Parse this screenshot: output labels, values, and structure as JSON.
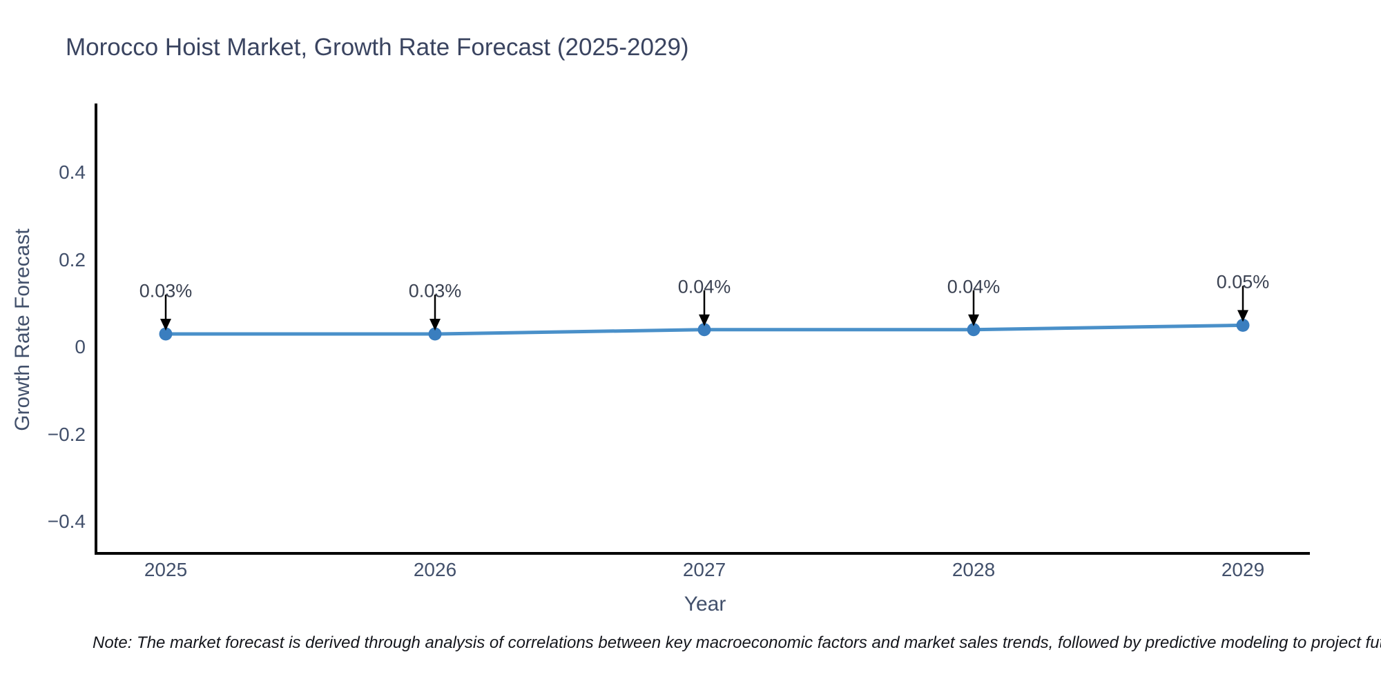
{
  "title": {
    "text": "Morocco Hoist Market, Growth Rate Forecast (2025-2029)"
  },
  "note": {
    "text": "Note: The market forecast is derived through analysis of correlations between key macroeconomic factors and market sales trends, followed by predictive modeling to project future sa"
  },
  "chart_data": {
    "type": "line",
    "title": "Morocco Hoist Market, Growth Rate Forecast (2025-2029)",
    "xlabel": "Year",
    "ylabel": "Growth Rate Forecast",
    "x": [
      2025,
      2026,
      2027,
      2028,
      2029
    ],
    "series": [
      {
        "name": "Growth Rate Forecast",
        "values": [
          0.03,
          0.03,
          0.04,
          0.04,
          0.05
        ]
      }
    ],
    "point_labels": [
      "0.03%",
      "0.03%",
      "0.04%",
      "0.04%",
      "0.05%"
    ],
    "yticks": [
      0.4,
      0.2,
      0,
      -0.2,
      -0.4
    ],
    "ylim": [
      -0.47,
      0.56
    ],
    "xlim": [
      2024.74,
      2029.25
    ],
    "grid": false,
    "legend": "none",
    "annotation_style": "percent value label with downward black arrow above each marker",
    "colors": {
      "line": "#4a90c9",
      "marker": "#3a7ebf",
      "arrow": "#000000",
      "axis_spine": "#000000",
      "tick_label": "#42506b",
      "annotation_text": "#3b4252",
      "title_text": "#3a4460",
      "note_text": "#14161c",
      "background": "#ffffff"
    }
  }
}
